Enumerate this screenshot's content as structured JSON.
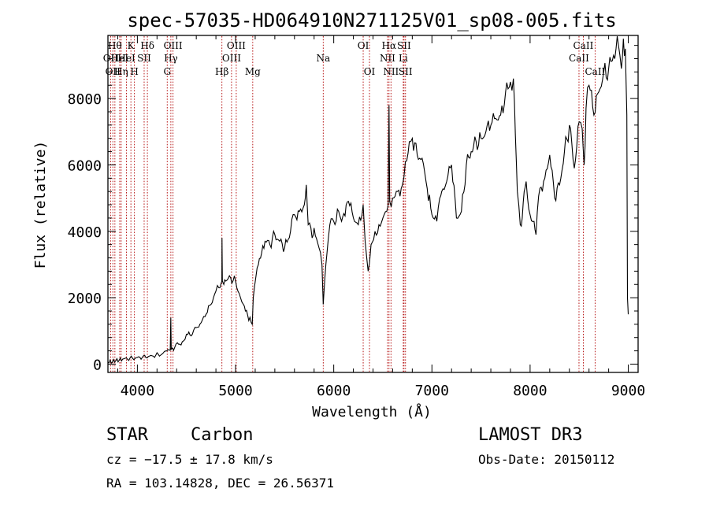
{
  "chart_data": {
    "type": "line",
    "title": "spec-57035-HD064910N271125V01_sp08-005.fits",
    "xlabel": "Wavelength (Å)",
    "ylabel": "Flux (relative)",
    "xlim": [
      3700,
      9100
    ],
    "ylim": [
      -250,
      9900
    ],
    "xticks": [
      {
        "value": 4000,
        "label": "4000"
      },
      {
        "value": 5000,
        "label": "5000"
      },
      {
        "value": 6000,
        "label": "6000"
      },
      {
        "value": 7000,
        "label": "7000"
      },
      {
        "value": 8000,
        "label": "8000"
      },
      {
        "value": 9000,
        "label": "9000"
      }
    ],
    "yticks": [
      {
        "value": 0,
        "label": "0"
      },
      {
        "value": 2000,
        "label": "2000"
      },
      {
        "value": 4000,
        "label": "4000"
      },
      {
        "value": 6000,
        "label": "6000"
      },
      {
        "value": 8000,
        "label": "8000"
      }
    ],
    "series": [
      {
        "name": "spectrum",
        "x": [
          3700,
          3780,
          3850,
          3950,
          4050,
          4150,
          4250,
          4300,
          4335,
          4340,
          4345,
          4380,
          4420,
          4470,
          4500,
          4560,
          4600,
          4650,
          4700,
          4750,
          4800,
          4830,
          4850,
          4860,
          4862,
          4866,
          4880,
          4900,
          4950,
          5000,
          5050,
          5080,
          5100,
          5170,
          5180,
          5220,
          5300,
          5350,
          5400,
          5450,
          5500,
          5560,
          5600,
          5650,
          5700,
          5720,
          5740,
          5780,
          5800,
          5850,
          5880,
          5893,
          5910,
          5930,
          5960,
          6000,
          6050,
          6080,
          6150,
          6200,
          6250,
          6300,
          6320,
          6350,
          6380,
          6420,
          6460,
          6500,
          6540,
          6555,
          6563,
          6570,
          6600,
          6650,
          6700,
          6730,
          6770,
          6800,
          6850,
          6900,
          6940,
          7000,
          7050,
          7080,
          7100,
          7150,
          7200,
          7250,
          7300,
          7350,
          7400,
          7450,
          7500,
          7550,
          7600,
          7650,
          7700,
          7750,
          7800,
          7830,
          7850,
          7870,
          7900,
          7920,
          7940,
          7960,
          8000,
          8040,
          8060,
          8100,
          8150,
          8200,
          8250,
          8300,
          8350,
          8400,
          8450,
          8500,
          8530,
          8550,
          8570,
          8600,
          8650,
          8700,
          8750,
          8800,
          8850,
          8900,
          8930,
          8950,
          8970,
          8985,
          8992,
          9000
        ],
        "y": [
          50,
          100,
          150,
          180,
          200,
          250,
          300,
          400,
          420,
          1400,
          450,
          500,
          600,
          700,
          900,
          900,
          1100,
          1250,
          1500,
          1800,
          2200,
          2300,
          2400,
          2500,
          3800,
          2500,
          2400,
          2500,
          2600,
          2500,
          2000,
          1800,
          1600,
          1200,
          2000,
          2900,
          3700,
          3600,
          3900,
          3700,
          3500,
          4000,
          4500,
          4600,
          4800,
          5400,
          4200,
          3800,
          4100,
          3500,
          3000,
          1800,
          2600,
          3300,
          4200,
          4300,
          4600,
          4300,
          4900,
          4400,
          4200,
          4800,
          3700,
          2800,
          3600,
          4000,
          4200,
          4400,
          4600,
          4800,
          7800,
          4900,
          5000,
          5200,
          5400,
          6100,
          6700,
          6800,
          6300,
          6200,
          5500,
          4500,
          4300,
          5000,
          5200,
          5500,
          6000,
          4400,
          4600,
          6000,
          6400,
          6700,
          6800,
          7000,
          7200,
          7400,
          7500,
          8200,
          8500,
          8600,
          6900,
          5200,
          4200,
          4400,
          5200,
          5500,
          4500,
          4300,
          3900,
          5300,
          5600,
          6300,
          5000,
          5400,
          6400,
          7200,
          5900,
          7300,
          7100,
          6000,
          7700,
          8400,
          7500,
          8200,
          8800,
          8900,
          9300,
          9600,
          8900,
          9800,
          9500,
          7500,
          2000,
          1500
        ]
      }
    ],
    "line_markers": [
      {
        "wavelength": 3727,
        "label": "OII",
        "row": 2
      },
      {
        "wavelength": 3750,
        "label": "OII",
        "row": 3
      },
      {
        "wavelength": 3771,
        "label": "Hθ",
        "row": 1
      },
      {
        "wavelength": 3820,
        "label": "HeI",
        "row": 2
      },
      {
        "wavelength": 3835,
        "label": "Hη",
        "row": 3
      },
      {
        "wavelength": 3889,
        "label": "HeI",
        "row": 2
      },
      {
        "wavelength": 3934,
        "label": "K",
        "row": 1
      },
      {
        "wavelength": 3970,
        "label": "H",
        "row": 3
      },
      {
        "wavelength": 4069,
        "label": "SII",
        "row": 2
      },
      {
        "wavelength": 4102,
        "label": "Hδ",
        "row": 1
      },
      {
        "wavelength": 4304,
        "label": "G",
        "row": 3
      },
      {
        "wavelength": 4341,
        "label": "Hγ",
        "row": 2
      },
      {
        "wavelength": 4363,
        "label": "OIII",
        "row": 1
      },
      {
        "wavelength": 4861,
        "label": "Hβ",
        "row": 3
      },
      {
        "wavelength": 4959,
        "label": "OIII",
        "row": 2
      },
      {
        "wavelength": 5007,
        "label": "OIII",
        "row": 1
      },
      {
        "wavelength": 5175,
        "label": "Mg",
        "row": 3
      },
      {
        "wavelength": 5893,
        "label": "Na",
        "row": 2
      },
      {
        "wavelength": 6300,
        "label": "OI",
        "row": 1
      },
      {
        "wavelength": 6364,
        "label": "OI",
        "row": 3
      },
      {
        "wavelength": 6548,
        "label": "NII",
        "row": 2
      },
      {
        "wavelength": 6563,
        "label": "Hα",
        "row": 1
      },
      {
        "wavelength": 6583,
        "label": "NII",
        "row": 3
      },
      {
        "wavelength": 6708,
        "label": "Li",
        "row": 2
      },
      {
        "wavelength": 6716,
        "label": "SII",
        "row": 1
      },
      {
        "wavelength": 6731,
        "label": "SII",
        "row": 3
      },
      {
        "wavelength": 8498,
        "label": "CaII",
        "row": 2
      },
      {
        "wavelength": 8542,
        "label": "CaII",
        "row": 1
      },
      {
        "wavelength": 8662,
        "label": "CaII",
        "row": 3
      }
    ]
  },
  "info": {
    "class_label": "STAR",
    "subclass": "Carbon",
    "survey": "LAMOST DR3",
    "redshift": "cz = −17.5 ± 17.8 km/s",
    "obs_date": "Obs-Date: 20150112",
    "coords": "RA = 103.14828, DEC =  26.56371"
  }
}
